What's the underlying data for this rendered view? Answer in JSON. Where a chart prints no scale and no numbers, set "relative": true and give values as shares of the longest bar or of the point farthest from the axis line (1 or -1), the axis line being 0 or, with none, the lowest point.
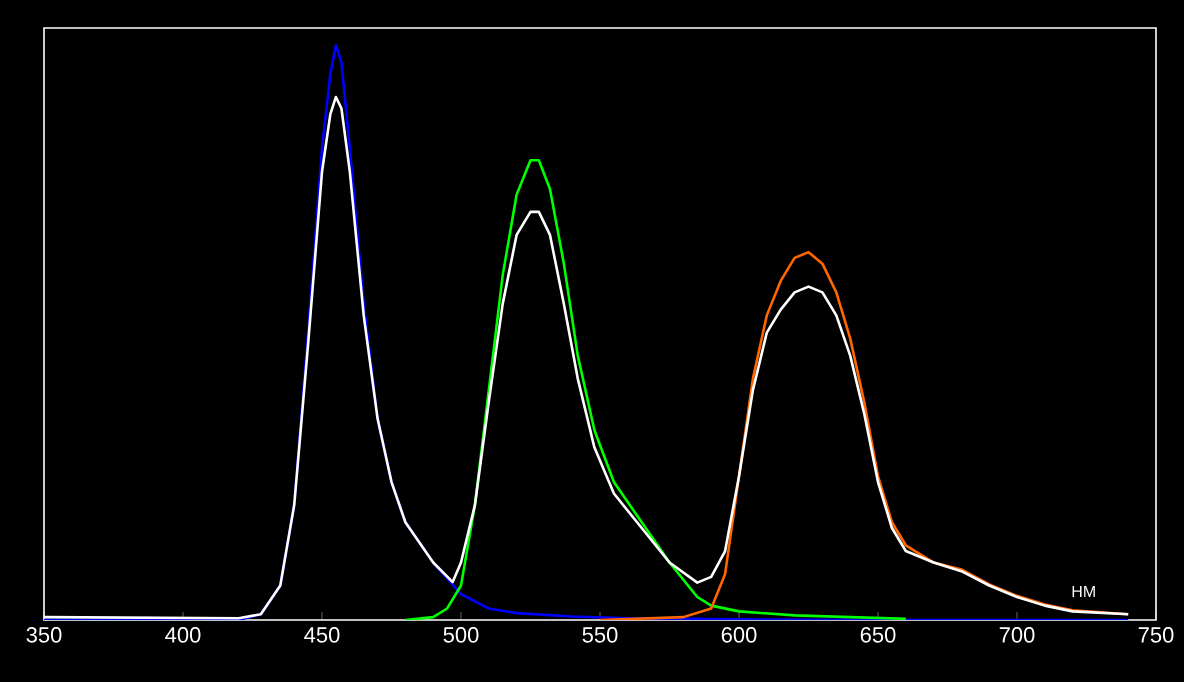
{
  "chart_data": {
    "type": "line",
    "relative": true,
    "xlabel": "НМ",
    "xlim": [
      350,
      750
    ],
    "xticks": [
      350,
      400,
      450,
      500,
      550,
      600,
      650,
      700,
      750
    ],
    "grid": false,
    "marker": "none",
    "line_style": "solid",
    "series": [
      {
        "color": "#0000ff",
        "x": [
          350,
          420,
          428,
          435,
          440,
          445,
          450,
          453,
          455,
          457,
          460,
          465,
          470,
          475,
          480,
          490,
          500,
          510,
          520,
          540,
          560,
          600,
          650,
          740
        ],
        "values": [
          0,
          0,
          0.01,
          0.06,
          0.2,
          0.5,
          0.82,
          0.95,
          1.0,
          0.97,
          0.82,
          0.55,
          0.35,
          0.24,
          0.17,
          0.1,
          0.045,
          0.02,
          0.012,
          0.006,
          0.003,
          0.001,
          0,
          0
        ]
      },
      {
        "color": "#00ff00",
        "x": [
          480,
          490,
          495,
          500,
          505,
          510,
          515,
          520,
          525,
          528,
          532,
          537,
          542,
          548,
          555,
          565,
          575,
          585,
          590,
          600,
          620,
          660
        ],
        "values": [
          0,
          0.005,
          0.02,
          0.06,
          0.2,
          0.4,
          0.6,
          0.74,
          0.8,
          0.8,
          0.75,
          0.62,
          0.46,
          0.33,
          0.24,
          0.17,
          0.1,
          0.04,
          0.025,
          0.015,
          0.008,
          0.002
        ]
      },
      {
        "color": "#ff6600",
        "x": [
          550,
          580,
          590,
          595,
          600,
          605,
          610,
          615,
          620,
          625,
          630,
          635,
          640,
          645,
          650,
          655,
          660,
          670,
          680,
          690,
          700,
          710,
          720,
          740
        ],
        "values": [
          0,
          0.005,
          0.02,
          0.08,
          0.25,
          0.42,
          0.53,
          0.59,
          0.63,
          0.64,
          0.62,
          0.57,
          0.49,
          0.38,
          0.25,
          0.17,
          0.13,
          0.1,
          0.088,
          0.062,
          0.042,
          0.027,
          0.017,
          0.01
        ]
      },
      {
        "color": "#ffffff",
        "x": [
          350,
          420,
          428,
          435,
          440,
          445,
          450,
          453,
          455,
          457,
          460,
          465,
          470,
          475,
          480,
          490,
          497,
          500,
          505,
          510,
          515,
          520,
          525,
          528,
          532,
          537,
          542,
          548,
          555,
          565,
          575,
          585,
          590,
          595,
          600,
          605,
          610,
          615,
          620,
          625,
          630,
          635,
          640,
          645,
          650,
          655,
          660,
          670,
          680,
          690,
          700,
          710,
          720,
          740
        ],
        "values": [
          0.005,
          0.003,
          0.01,
          0.06,
          0.2,
          0.48,
          0.78,
          0.88,
          0.91,
          0.89,
          0.78,
          0.53,
          0.35,
          0.24,
          0.17,
          0.1,
          0.066,
          0.1,
          0.2,
          0.38,
          0.55,
          0.67,
          0.71,
          0.71,
          0.67,
          0.55,
          0.42,
          0.3,
          0.22,
          0.16,
          0.1,
          0.065,
          0.075,
          0.12,
          0.25,
          0.4,
          0.5,
          0.54,
          0.57,
          0.58,
          0.57,
          0.53,
          0.46,
          0.36,
          0.24,
          0.16,
          0.12,
          0.1,
          0.085,
          0.06,
          0.04,
          0.025,
          0.015,
          0.01
        ]
      }
    ]
  }
}
